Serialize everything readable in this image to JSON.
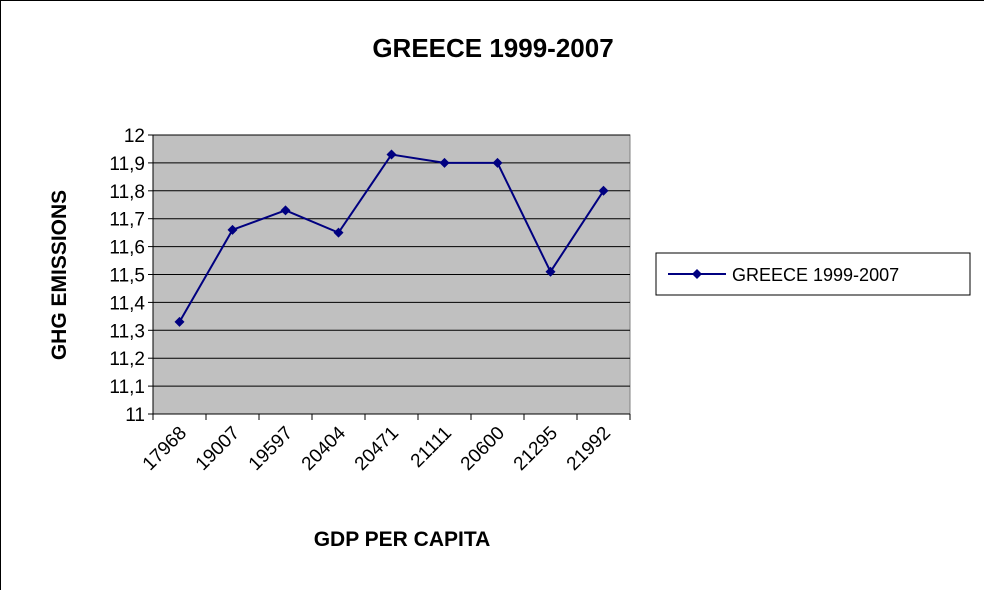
{
  "chart_data": {
    "type": "line",
    "title": "GREECE 1999-2007",
    "xlabel": "GDP PER CAPITA",
    "ylabel": "GHG EMISSIONS",
    "categories": [
      "17968",
      "19007",
      "19597",
      "20404",
      "20471",
      "21111",
      "20600",
      "21295",
      "21992"
    ],
    "series": [
      {
        "name": "GREECE 1999-2007",
        "values": [
          11.33,
          11.66,
          11.73,
          11.65,
          11.93,
          11.9,
          11.9,
          11.51,
          11.8
        ]
      }
    ],
    "ylim": [
      11,
      12
    ],
    "yticks": [
      "12",
      "11,9",
      "11,8",
      "11,7",
      "11,6",
      "11,5",
      "11,4",
      "11,3",
      "11,2",
      "11,1",
      "11"
    ],
    "grid": true,
    "legend_position": "right",
    "colors": {
      "series_line": "#000080",
      "plot_background": "#c0c0c0",
      "gridline": "#000000"
    }
  }
}
